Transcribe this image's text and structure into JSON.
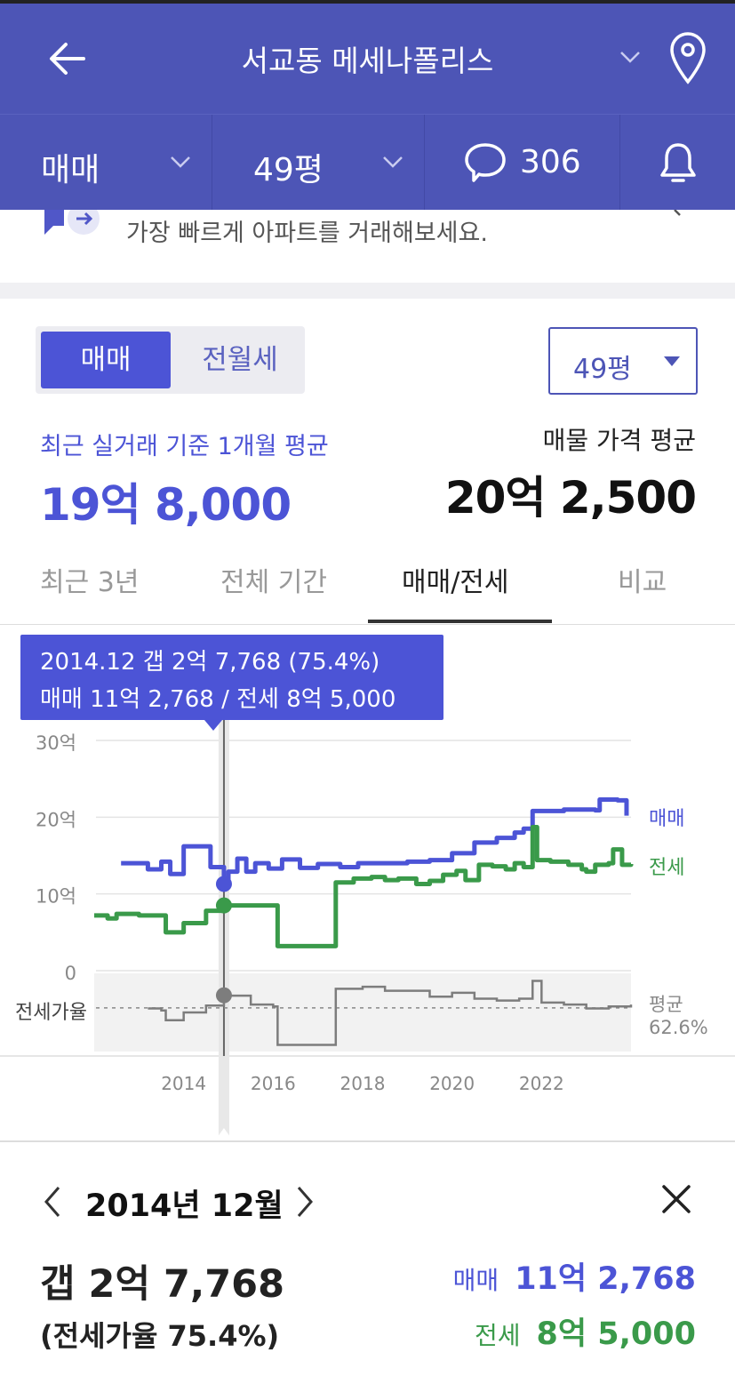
{
  "header": {
    "title": "서교동 메세나폴리스"
  },
  "subbar": {
    "trade_type": "매매",
    "size": "49평",
    "comment_count": "306"
  },
  "banner": {
    "text": "가장 빠르게 아파트를 거래해보세요."
  },
  "segment": {
    "active": "매매",
    "inactive": "전월세"
  },
  "size_select": {
    "value": "49평"
  },
  "price": {
    "recent_label": "최근 실거래 기준 1개월 평균",
    "recent_value": "19억 8,000",
    "listing_label": "매물 가격 평균",
    "listing_value": "20억 2,500"
  },
  "tabs": [
    "최근 3년",
    "전체 기간",
    "매매/전세",
    "비교"
  ],
  "tooltip": {
    "line1": "2014.12  갭 2억 7,768 (75.4%)",
    "line2": "매매 11억 2,768 / 전세 8억 5,000"
  },
  "chart_data": {
    "type": "line",
    "y_ticks": [
      "30억",
      "20억",
      "10억",
      "0"
    ],
    "ylim": [
      0,
      30
    ],
    "x_ticks": [
      "2014",
      "2016",
      "2018",
      "2020",
      "2022"
    ],
    "series": [
      {
        "name": "매매",
        "color": "#4c54d6",
        "points": [
          [
            2012.6,
            14.0
          ],
          [
            2013.0,
            14.0
          ],
          [
            2013.2,
            13.2
          ],
          [
            2013.5,
            14.2
          ],
          [
            2013.7,
            12.6
          ],
          [
            2014.0,
            16.2
          ],
          [
            2014.5,
            16.2
          ],
          [
            2014.6,
            13.5
          ],
          [
            2014.9,
            11.3
          ],
          [
            2015.0,
            12.9
          ],
          [
            2015.2,
            14.6
          ],
          [
            2015.4,
            12.9
          ],
          [
            2015.6,
            14.0
          ],
          [
            2015.9,
            13.3
          ],
          [
            2016.2,
            14.5
          ],
          [
            2016.6,
            13.4
          ],
          [
            2017.0,
            13.9
          ],
          [
            2017.5,
            13.5
          ],
          [
            2017.9,
            14.0
          ],
          [
            2018.5,
            14.0
          ],
          [
            2019.0,
            14.2
          ],
          [
            2019.5,
            14.4
          ],
          [
            2020.0,
            15.3
          ],
          [
            2020.5,
            16.7
          ],
          [
            2021.0,
            17.3
          ],
          [
            2021.4,
            18.0
          ],
          [
            2021.6,
            18.5
          ],
          [
            2021.8,
            20.8
          ],
          [
            2022.5,
            21.0
          ],
          [
            2023.2,
            20.9
          ],
          [
            2023.3,
            22.3
          ],
          [
            2023.7,
            22.2
          ],
          [
            2023.9,
            20.2
          ]
        ]
      },
      {
        "name": "전세",
        "color": "#3a9a4a",
        "points": [
          [
            2012.0,
            7.2
          ],
          [
            2012.3,
            6.8
          ],
          [
            2012.5,
            7.4
          ],
          [
            2013.0,
            7.2
          ],
          [
            2013.5,
            7.2
          ],
          [
            2013.6,
            5.0
          ],
          [
            2013.9,
            5.0
          ],
          [
            2014.0,
            6.2
          ],
          [
            2014.5,
            7.8
          ],
          [
            2014.9,
            8.5
          ],
          [
            2015.5,
            8.5
          ],
          [
            2016.0,
            8.5
          ],
          [
            2016.1,
            3.2
          ],
          [
            2016.9,
            3.2
          ],
          [
            2017.3,
            3.2
          ],
          [
            2017.4,
            11.5
          ],
          [
            2017.8,
            12.0
          ],
          [
            2018.2,
            12.2
          ],
          [
            2018.5,
            11.8
          ],
          [
            2018.8,
            12.0
          ],
          [
            2019.2,
            11.3
          ],
          [
            2019.5,
            11.7
          ],
          [
            2019.8,
            12.5
          ],
          [
            2020.1,
            13.0
          ],
          [
            2020.3,
            11.8
          ],
          [
            2020.6,
            13.8
          ],
          [
            2020.9,
            13.6
          ],
          [
            2021.2,
            13.2
          ],
          [
            2021.4,
            14.0
          ],
          [
            2021.6,
            13.5
          ],
          [
            2021.8,
            18.7
          ],
          [
            2021.9,
            14.4
          ],
          [
            2022.2,
            14.2
          ],
          [
            2022.6,
            13.8
          ],
          [
            2022.9,
            13.2
          ],
          [
            2023.0,
            12.9
          ],
          [
            2023.2,
            13.8
          ],
          [
            2023.5,
            14.0
          ],
          [
            2023.6,
            15.8
          ],
          [
            2023.8,
            13.8
          ],
          [
            2024.0,
            13.9
          ]
        ]
      }
    ],
    "ratio_label": "전세가율",
    "ratio_avg_label": "평균",
    "ratio_avg_value": "62.6%",
    "ratio_series": {
      "color": "#7d7d7d",
      "points": [
        [
          2013.2,
          62
        ],
        [
          2013.5,
          60
        ],
        [
          2013.6,
          50
        ],
        [
          2013.9,
          50
        ],
        [
          2014.0,
          58
        ],
        [
          2014.5,
          65
        ],
        [
          2014.9,
          75
        ],
        [
          2015.5,
          66
        ],
        [
          2016.0,
          64
        ],
        [
          2016.1,
          25
        ],
        [
          2016.9,
          25
        ],
        [
          2017.3,
          25
        ],
        [
          2017.4,
          82
        ],
        [
          2018.0,
          84
        ],
        [
          2018.5,
          80
        ],
        [
          2019.0,
          80
        ],
        [
          2019.5,
          74
        ],
        [
          2020.0,
          78
        ],
        [
          2020.5,
          72
        ],
        [
          2021.0,
          70
        ],
        [
          2021.5,
          72
        ],
        [
          2021.8,
          90
        ],
        [
          2022.0,
          68
        ],
        [
          2022.5,
          66
        ],
        [
          2023.0,
          62
        ],
        [
          2023.5,
          64
        ],
        [
          2024.0,
          66
        ]
      ]
    },
    "selected": {
      "x": 2014.9,
      "sale": 11.3,
      "jeonse": 8.5,
      "ratio": 75.4
    }
  },
  "detail": {
    "date": "2014년 12월",
    "gap": "갭 2억 7,768",
    "ratio": "(전세가율 75.4%)",
    "sale_label": "매매",
    "sale_value": "11억 2,768",
    "jeonse_label": "전세",
    "jeonse_value": "8억 5,000"
  }
}
